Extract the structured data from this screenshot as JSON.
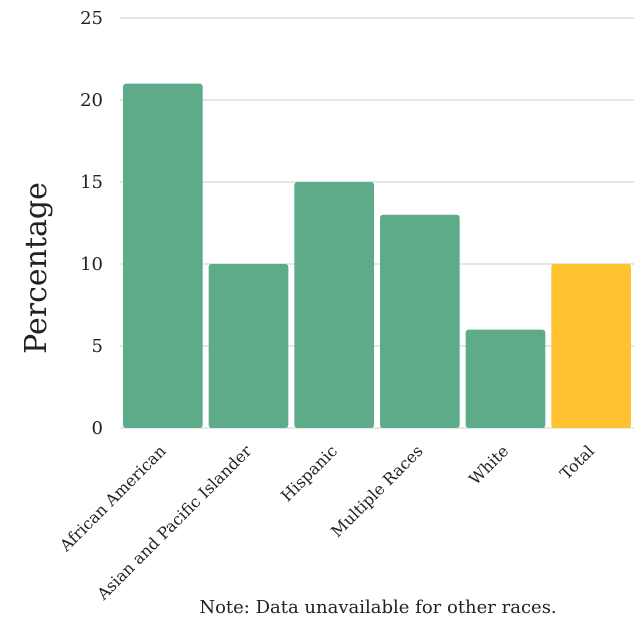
{
  "chart_data": {
    "type": "bar",
    "categories": [
      "African American",
      "Asian and Pacific Islander",
      "Hispanic",
      "Multiple Races",
      "White",
      "Total"
    ],
    "values": [
      21,
      10,
      15,
      13,
      6,
      10
    ],
    "bar_colors": [
      "#5eab8a",
      "#5eab8a",
      "#5eab8a",
      "#5eab8a",
      "#5eab8a",
      "#fec32e"
    ],
    "ylabel": "Percentage",
    "ylim": [
      0,
      25
    ],
    "yticks": [
      0,
      5,
      10,
      15,
      20,
      25
    ],
    "grid": true,
    "note": "Note: Data unavailable for other races."
  }
}
